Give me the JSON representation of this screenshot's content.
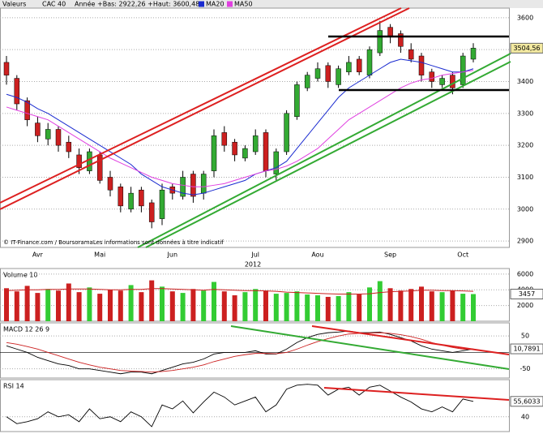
{
  "header": {
    "label": "Valeurs",
    "symbol": "CAC 40",
    "range": "Année +Bas: 2922,26 +Haut: 3600,48"
  },
  "chart_data": [
    {
      "type": "candlestick",
      "source": "© IT-Finance.com / BoursoramaLes informations sont données à titre indicatif",
      "x_label": "2012",
      "categories": [
        null,
        null,
        null,
        "Avr",
        null,
        null,
        null,
        null,
        null,
        "Mai",
        null,
        null,
        null,
        null,
        null,
        null,
        "Jun",
        null,
        null,
        null,
        null,
        null,
        null,
        null,
        "Jul",
        null,
        null,
        null,
        null,
        null,
        "Aou",
        null,
        null,
        null,
        null,
        null,
        null,
        "Sep",
        null,
        null,
        null,
        null,
        null,
        null,
        "Oct",
        null
      ],
      "open": [
        3460,
        3410,
        3340,
        3270,
        3220,
        3250,
        3210,
        3170,
        3120,
        3170,
        3100,
        3070,
        3000,
        3060,
        3020,
        2970,
        3070,
        3040,
        3110,
        3050,
        3120,
        3240,
        3210,
        3160,
        3180,
        3240,
        3110,
        3180,
        3290,
        3380,
        3410,
        3450,
        3390,
        3430,
        3470,
        3420,
        3490,
        3570,
        3550,
        3500,
        3480,
        3430,
        3390,
        3420,
        3390,
        3470
      ],
      "high": [
        3480,
        3420,
        3350,
        3290,
        3270,
        3260,
        3230,
        3190,
        3190,
        3180,
        3120,
        3080,
        3070,
        3070,
        3030,
        3080,
        3080,
        3120,
        3120,
        3120,
        3250,
        3260,
        3220,
        3200,
        3250,
        3250,
        3190,
        3310,
        3400,
        3430,
        3460,
        3460,
        3450,
        3480,
        3480,
        3510,
        3590,
        3580,
        3560,
        3520,
        3490,
        3440,
        3420,
        3430,
        3490,
        3520
      ],
      "low": [
        3390,
        3310,
        3260,
        3210,
        3200,
        3180,
        3160,
        3110,
        3110,
        3080,
        3040,
        2990,
        2990,
        2990,
        2940,
        2950,
        3030,
        3030,
        3020,
        3030,
        3100,
        3180,
        3150,
        3150,
        3170,
        3100,
        3090,
        3170,
        3280,
        3370,
        3400,
        3380,
        3380,
        3420,
        3420,
        3410,
        3480,
        3520,
        3490,
        3460,
        3400,
        3380,
        3380,
        3360,
        3380,
        3460
      ],
      "close": [
        3420,
        3330,
        3280,
        3230,
        3250,
        3200,
        3180,
        3130,
        3180,
        3090,
        3060,
        3010,
        3050,
        3010,
        2960,
        3060,
        3050,
        3100,
        3040,
        3110,
        3230,
        3200,
        3170,
        3190,
        3230,
        3120,
        3180,
        3300,
        3390,
        3420,
        3440,
        3400,
        3440,
        3460,
        3430,
        3500,
        3560,
        3540,
        3510,
        3470,
        3420,
        3400,
        3410,
        3380,
        3480,
        3504.56
      ],
      "up_color": "#33aa33",
      "down_color": "#cc2020",
      "series": [
        {
          "name": "MA20",
          "color": "#1a2bd0",
          "values": [
            3360,
            3350,
            3335,
            3315,
            3300,
            3280,
            3260,
            3240,
            3220,
            3200,
            3180,
            3160,
            3140,
            3110,
            3090,
            3070,
            3060,
            3050,
            3045,
            3050,
            3060,
            3070,
            3080,
            3090,
            3110,
            3120,
            3130,
            3150,
            3190,
            3230,
            3270,
            3310,
            3350,
            3380,
            3400,
            3420,
            3440,
            3460,
            3470,
            3465,
            3460,
            3450,
            3440,
            3430,
            3430,
            3440
          ]
        },
        {
          "name": "MA50",
          "color": "#e040e0",
          "values": [
            3320,
            3310,
            3300,
            3290,
            3280,
            3260,
            3240,
            3220,
            3200,
            3180,
            3160,
            3145,
            3130,
            3115,
            3100,
            3090,
            3080,
            3075,
            3070,
            3070,
            3075,
            3080,
            3090,
            3100,
            3110,
            3120,
            3125,
            3135,
            3150,
            3170,
            3190,
            3220,
            3250,
            3280,
            3300,
            3320,
            3340,
            3360,
            3380,
            3395,
            3405,
            3410,
            3420,
            3425,
            3430,
            3435
          ]
        }
      ],
      "ylim": [
        2880,
        3625
      ],
      "yticks": [
        2900,
        3000,
        3100,
        3200,
        3300,
        3400,
        3500,
        3600
      ],
      "grid": true,
      "last_value": {
        "value": 3504.56,
        "label": "3504,56"
      },
      "last_color": "#f3e9a0"
    },
    {
      "type": "bar",
      "title": "Volume 10",
      "values": [
        4200,
        3800,
        4500,
        3600,
        4100,
        3900,
        4800,
        3700,
        4300,
        3500,
        4000,
        3900,
        4600,
        3700,
        5200,
        4400,
        3800,
        3600,
        4100,
        3900,
        5000,
        3800,
        3300,
        3700,
        4100,
        3900,
        3500,
        3600,
        3800,
        3400,
        3300,
        3100,
        3200,
        3700,
        3400,
        4300,
        5100,
        4200,
        3900,
        4100,
        4400,
        3800,
        3700,
        3900,
        3500,
        3457
      ],
      "ma_values": [
        3900,
        3950,
        4000,
        4000,
        4050,
        4050,
        4100,
        4100,
        4100,
        4050,
        4000,
        4000,
        4050,
        4050,
        4150,
        4150,
        4100,
        4050,
        4000,
        3950,
        4050,
        4000,
        3950,
        3900,
        3900,
        3850,
        3800,
        3700,
        3650,
        3600,
        3550,
        3500,
        3450,
        3450,
        3450,
        3500,
        3650,
        3750,
        3800,
        3850,
        3950,
        3950,
        3900,
        3900,
        3850,
        3800
      ],
      "ma_color": "#cc2020",
      "up_color": "#33cc33",
      "down_color": "#cc2020",
      "ylim": [
        0,
        6500
      ],
      "yticks": [
        2000,
        4000,
        6000
      ],
      "grid": true,
      "last_value": {
        "value": 3457,
        "label": "3457"
      },
      "last_color": "#ffffff"
    },
    {
      "type": "line",
      "title": "MACD 12 26 9",
      "series": [
        {
          "color": "#000000",
          "values": [
            20,
            10,
            0,
            -15,
            -25,
            -35,
            -40,
            -50,
            -50,
            -55,
            -60,
            -65,
            -60,
            -60,
            -65,
            -55,
            -45,
            -35,
            -30,
            -20,
            -5,
            0,
            0,
            0,
            5,
            -5,
            -5,
            10,
            30,
            45,
            55,
            60,
            62,
            65,
            60,
            60,
            62,
            55,
            45,
            35,
            20,
            10,
            5,
            0,
            5,
            10.7891
          ]
        },
        {
          "color": "#cc2020",
          "values": [
            30,
            25,
            18,
            10,
            0,
            -10,
            -20,
            -30,
            -38,
            -45,
            -50,
            -55,
            -57,
            -58,
            -60,
            -58,
            -55,
            -50,
            -45,
            -38,
            -28,
            -20,
            -12,
            -7,
            -3,
            -3,
            -4,
            0,
            10,
            22,
            33,
            42,
            50,
            56,
            58,
            59,
            60,
            58,
            54,
            48,
            40,
            30,
            22,
            15,
            10,
            9
          ]
        }
      ],
      "ylim": [
        -78,
        85
      ],
      "yticks": [
        50,
        -50
      ],
      "grid": true,
      "last_value": {
        "value": 10.7891,
        "label": "10,7891"
      },
      "last_color": "#ffffff"
    },
    {
      "type": "line",
      "title": "RSI 14",
      "series": [
        {
          "color": "#000000",
          "values": [
            40,
            33,
            35,
            38,
            45,
            40,
            42,
            35,
            48,
            38,
            40,
            35,
            45,
            40,
            30,
            52,
            48,
            56,
            44,
            55,
            65,
            60,
            52,
            56,
            60,
            45,
            52,
            68,
            72,
            73,
            72,
            62,
            68,
            70,
            62,
            70,
            72,
            66,
            60,
            55,
            48,
            45,
            50,
            45,
            58,
            55.6033
          ]
        }
      ],
      "ylim": [
        25,
        76
      ],
      "yticks": [
        40
      ],
      "grid": true,
      "last_value": {
        "value": 55.6033,
        "label": "55,6033"
      },
      "last_color": "#ffffff"
    }
  ]
}
